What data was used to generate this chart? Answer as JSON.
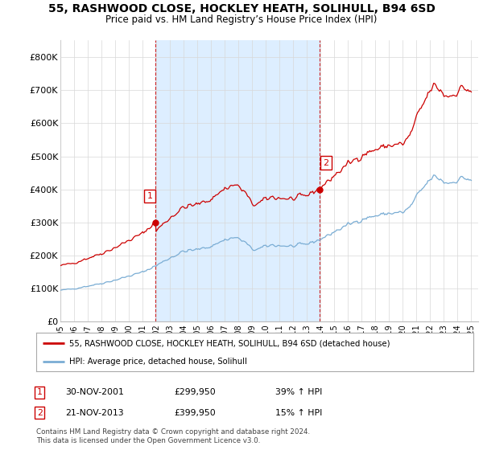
{
  "title": "55, RASHWOOD CLOSE, HOCKLEY HEATH, SOLIHULL, B94 6SD",
  "subtitle": "Price paid vs. HM Land Registry’s House Price Index (HPI)",
  "ylim": [
    0,
    850000
  ],
  "yticks": [
    0,
    100000,
    200000,
    300000,
    400000,
    500000,
    600000,
    700000,
    800000
  ],
  "ytick_labels": [
    "£0",
    "£100K",
    "£200K",
    "£300K",
    "£400K",
    "£500K",
    "£600K",
    "£700K",
    "£800K"
  ],
  "hpi_color": "#7aadd4",
  "price_color": "#cc0000",
  "shade_color": "#ddeeff",
  "marker1_year": 2001.92,
  "marker1_y": 299950,
  "marker2_year": 2013.9,
  "marker2_y": 399950,
  "legend_price_label": "55, RASHWOOD CLOSE, HOCKLEY HEATH, SOLIHULL, B94 6SD (detached house)",
  "legend_hpi_label": "HPI: Average price, detached house, Solihull",
  "footnote": "Contains HM Land Registry data © Crown copyright and database right 2024.\nThis data is licensed under the Open Government Licence v3.0.",
  "background_color": "#ffffff",
  "grid_color": "#d8d8d8",
  "xlim_start": 1995.0,
  "xlim_end": 2025.5
}
